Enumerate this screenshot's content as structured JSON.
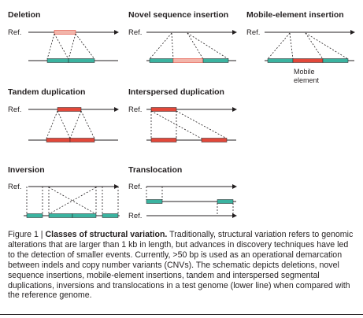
{
  "colors": {
    "line": "#231f20",
    "teal": "#3bb3a0",
    "red": "#e2483a",
    "pink": "#f2b5aa",
    "dashed": "#231f20"
  },
  "panels": {
    "deletion": {
      "title": "Deletion",
      "ref": "Ref."
    },
    "novel": {
      "title": "Novel sequence insertion",
      "ref": "Ref."
    },
    "mobile": {
      "title": "Mobile-element insertion",
      "ref": "Ref.",
      "label_line1": "Mobile",
      "label_line2": "element"
    },
    "tandem": {
      "title": "Tandem duplication",
      "ref": "Ref."
    },
    "interspersed": {
      "title": "Interspersed duplication",
      "ref": "Ref."
    },
    "inversion": {
      "title": "Inversion",
      "ref": "Ref."
    },
    "translocation": {
      "title": "Translocation",
      "ref_top": "Ref.",
      "ref_bottom": "Ref."
    }
  },
  "caption": {
    "lead": "Figure 1 | ",
    "head": "Classes of structural variation.",
    "body": " Traditionally, structural variation refers to genomic alterations that are larger than 1 kb in length, but advances in discovery techniques have led to the detection of smaller events. Currently, >50 bp is used as an operational demarcation between indels and copy number variants (CNVs). The schematic depicts deletions, novel sequence insertions, mobile-element insertions, tandem and interspersed segmental duplications, inversions and translocations in a test genome (lower line) when compared with the reference genome."
  }
}
